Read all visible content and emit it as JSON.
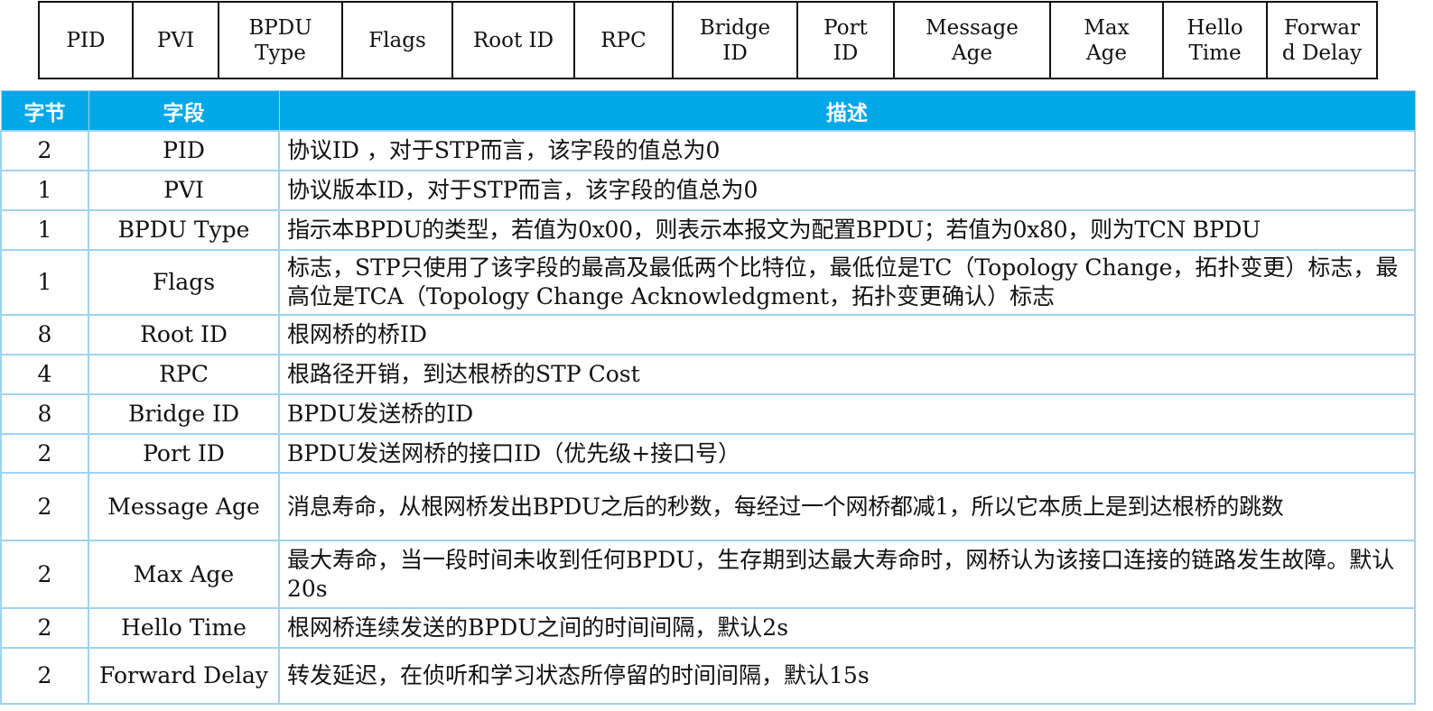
{
  "frame_fields": [
    "PID",
    "PVI",
    "BPDU\nType",
    "Flags",
    "Root ID",
    "RPC",
    "Bridge\nID",
    "Port\nID",
    "Message\nAge",
    "Max\nAge",
    "Hello\nTime",
    "Forwar\nd Delay"
  ],
  "table": {
    "headers": {
      "bytes": "字节",
      "field": "字段",
      "description": "描述"
    },
    "rows": [
      {
        "bytes": "2",
        "field": "PID",
        "description": "协议ID ，对于STP而言，该字段的值总为0"
      },
      {
        "bytes": "1",
        "field": "PVI",
        "description": "协议版本ID，对于STP而言，该字段的值总为0"
      },
      {
        "bytes": "1",
        "field": "BPDU Type",
        "description": "指示本BPDU的类型，若值为0x00，则表示本报文为配置BPDU；若值为0x80，则为TCN BPDU"
      },
      {
        "bytes": "1",
        "field": "Flags",
        "description": "标志，STP只使用了该字段的最高及最低两个比特位，最低位是TC（Topology Change，拓扑变更）标志，最高位是TCA（Topology Change Acknowledgment，拓扑变更确认）标志"
      },
      {
        "bytes": "8",
        "field": "Root ID",
        "description": "根网桥的桥ID"
      },
      {
        "bytes": "4",
        "field": "RPC",
        "description": "根路径开销，到达根桥的STP Cost"
      },
      {
        "bytes": "8",
        "field": "Bridge ID",
        "description": "BPDU发送桥的ID"
      },
      {
        "bytes": "2",
        "field": "Port ID",
        "description": "BPDU发送网桥的接口ID（优先级+接口号）"
      },
      {
        "bytes": "2",
        "field": "Message Age",
        "description": "消息寿命，从根网桥发出BPDU之后的秒数，每经过一个网桥都减1，所以它本质上是到达根桥的跳数"
      },
      {
        "bytes": "2",
        "field": "Max Age",
        "description": "最大寿命，当一段时间未收到任何BPDU，生存期到达最大寿命时，网桥认为该接口连接的链路发生故障。默认20s"
      },
      {
        "bytes": "2",
        "field": "Hello Time",
        "description": "根网桥连续发送的BPDU之间的时间间隔，默认2s"
      },
      {
        "bytes": "2",
        "field": "Forward Delay",
        "description": "转发延迟，在侦听和学习状态所停留的时间间隔，默认15s"
      }
    ]
  },
  "colors": {
    "header_bg": "#00a8e8",
    "header_text": "#ffffff",
    "grid": "#9fd3f2",
    "frame_border": "#111111"
  }
}
